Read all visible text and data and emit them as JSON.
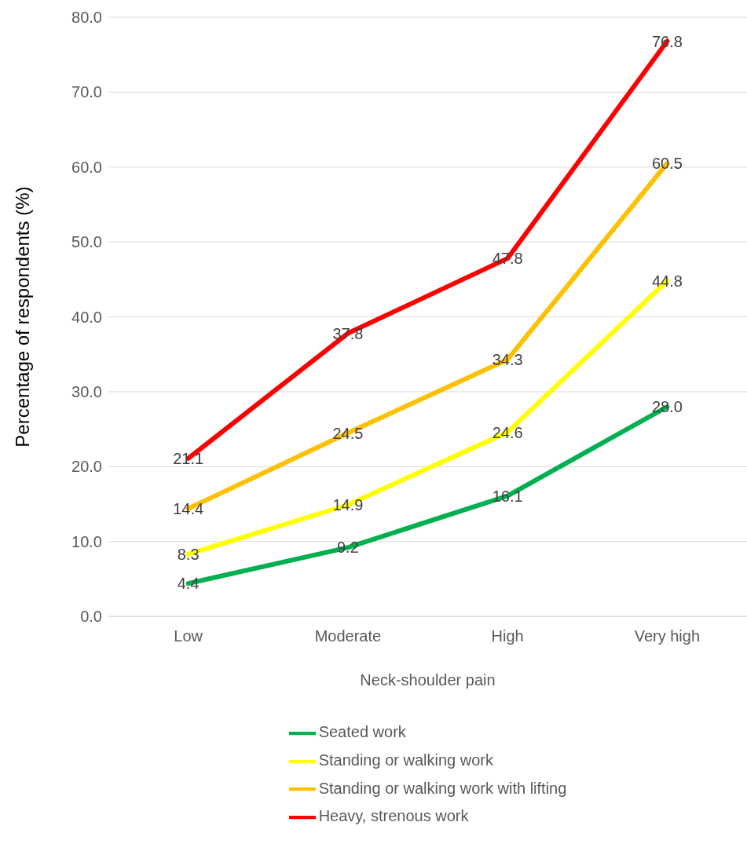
{
  "chart_data": {
    "type": "line",
    "xlabel": "Neck-shoulder pain",
    "ylabel": "Percentage of respondents (%)",
    "categories": [
      "Low",
      "Moderate",
      "High",
      "Very high"
    ],
    "series": [
      {
        "name": "Seated work",
        "color": "#00b050",
        "values": [
          4.4,
          9.2,
          16.1,
          28.0
        ],
        "value_labels": [
          "4.4",
          "9.2",
          "16.1",
          "28.0"
        ]
      },
      {
        "name": "Standing or walking work",
        "color": "#ffff00",
        "values": [
          8.3,
          14.9,
          24.6,
          44.8
        ],
        "value_labels": [
          "8.3",
          "14.9",
          "24.6",
          "44.8"
        ]
      },
      {
        "name": "Standing or walking work with lifting",
        "color": "#ffc000",
        "values": [
          14.4,
          24.5,
          34.3,
          60.5
        ],
        "value_labels": [
          "14.4",
          "24.5",
          "34.3",
          "60.5"
        ]
      },
      {
        "name": "Heavy, strenous work",
        "color": "#ff0000",
        "values": [
          21.1,
          37.8,
          47.8,
          76.8
        ],
        "value_labels": [
          "21.1",
          "37.8",
          "47.8",
          "76.8"
        ]
      }
    ],
    "ylim": [
      0,
      80
    ],
    "yticks": [
      {
        "value": 0,
        "label": "0.0"
      },
      {
        "value": 10,
        "label": "10.0"
      },
      {
        "value": 20,
        "label": "20.0"
      },
      {
        "value": 30,
        "label": "30.0"
      },
      {
        "value": 40,
        "label": "40.0"
      },
      {
        "value": 50,
        "label": "50.0"
      },
      {
        "value": 60,
        "label": "60.0"
      },
      {
        "value": 70,
        "label": "70.0"
      },
      {
        "value": 80,
        "label": "80.0"
      }
    ],
    "grid": "y",
    "legend": "bottom",
    "marker": "none",
    "line_style": "solid"
  }
}
